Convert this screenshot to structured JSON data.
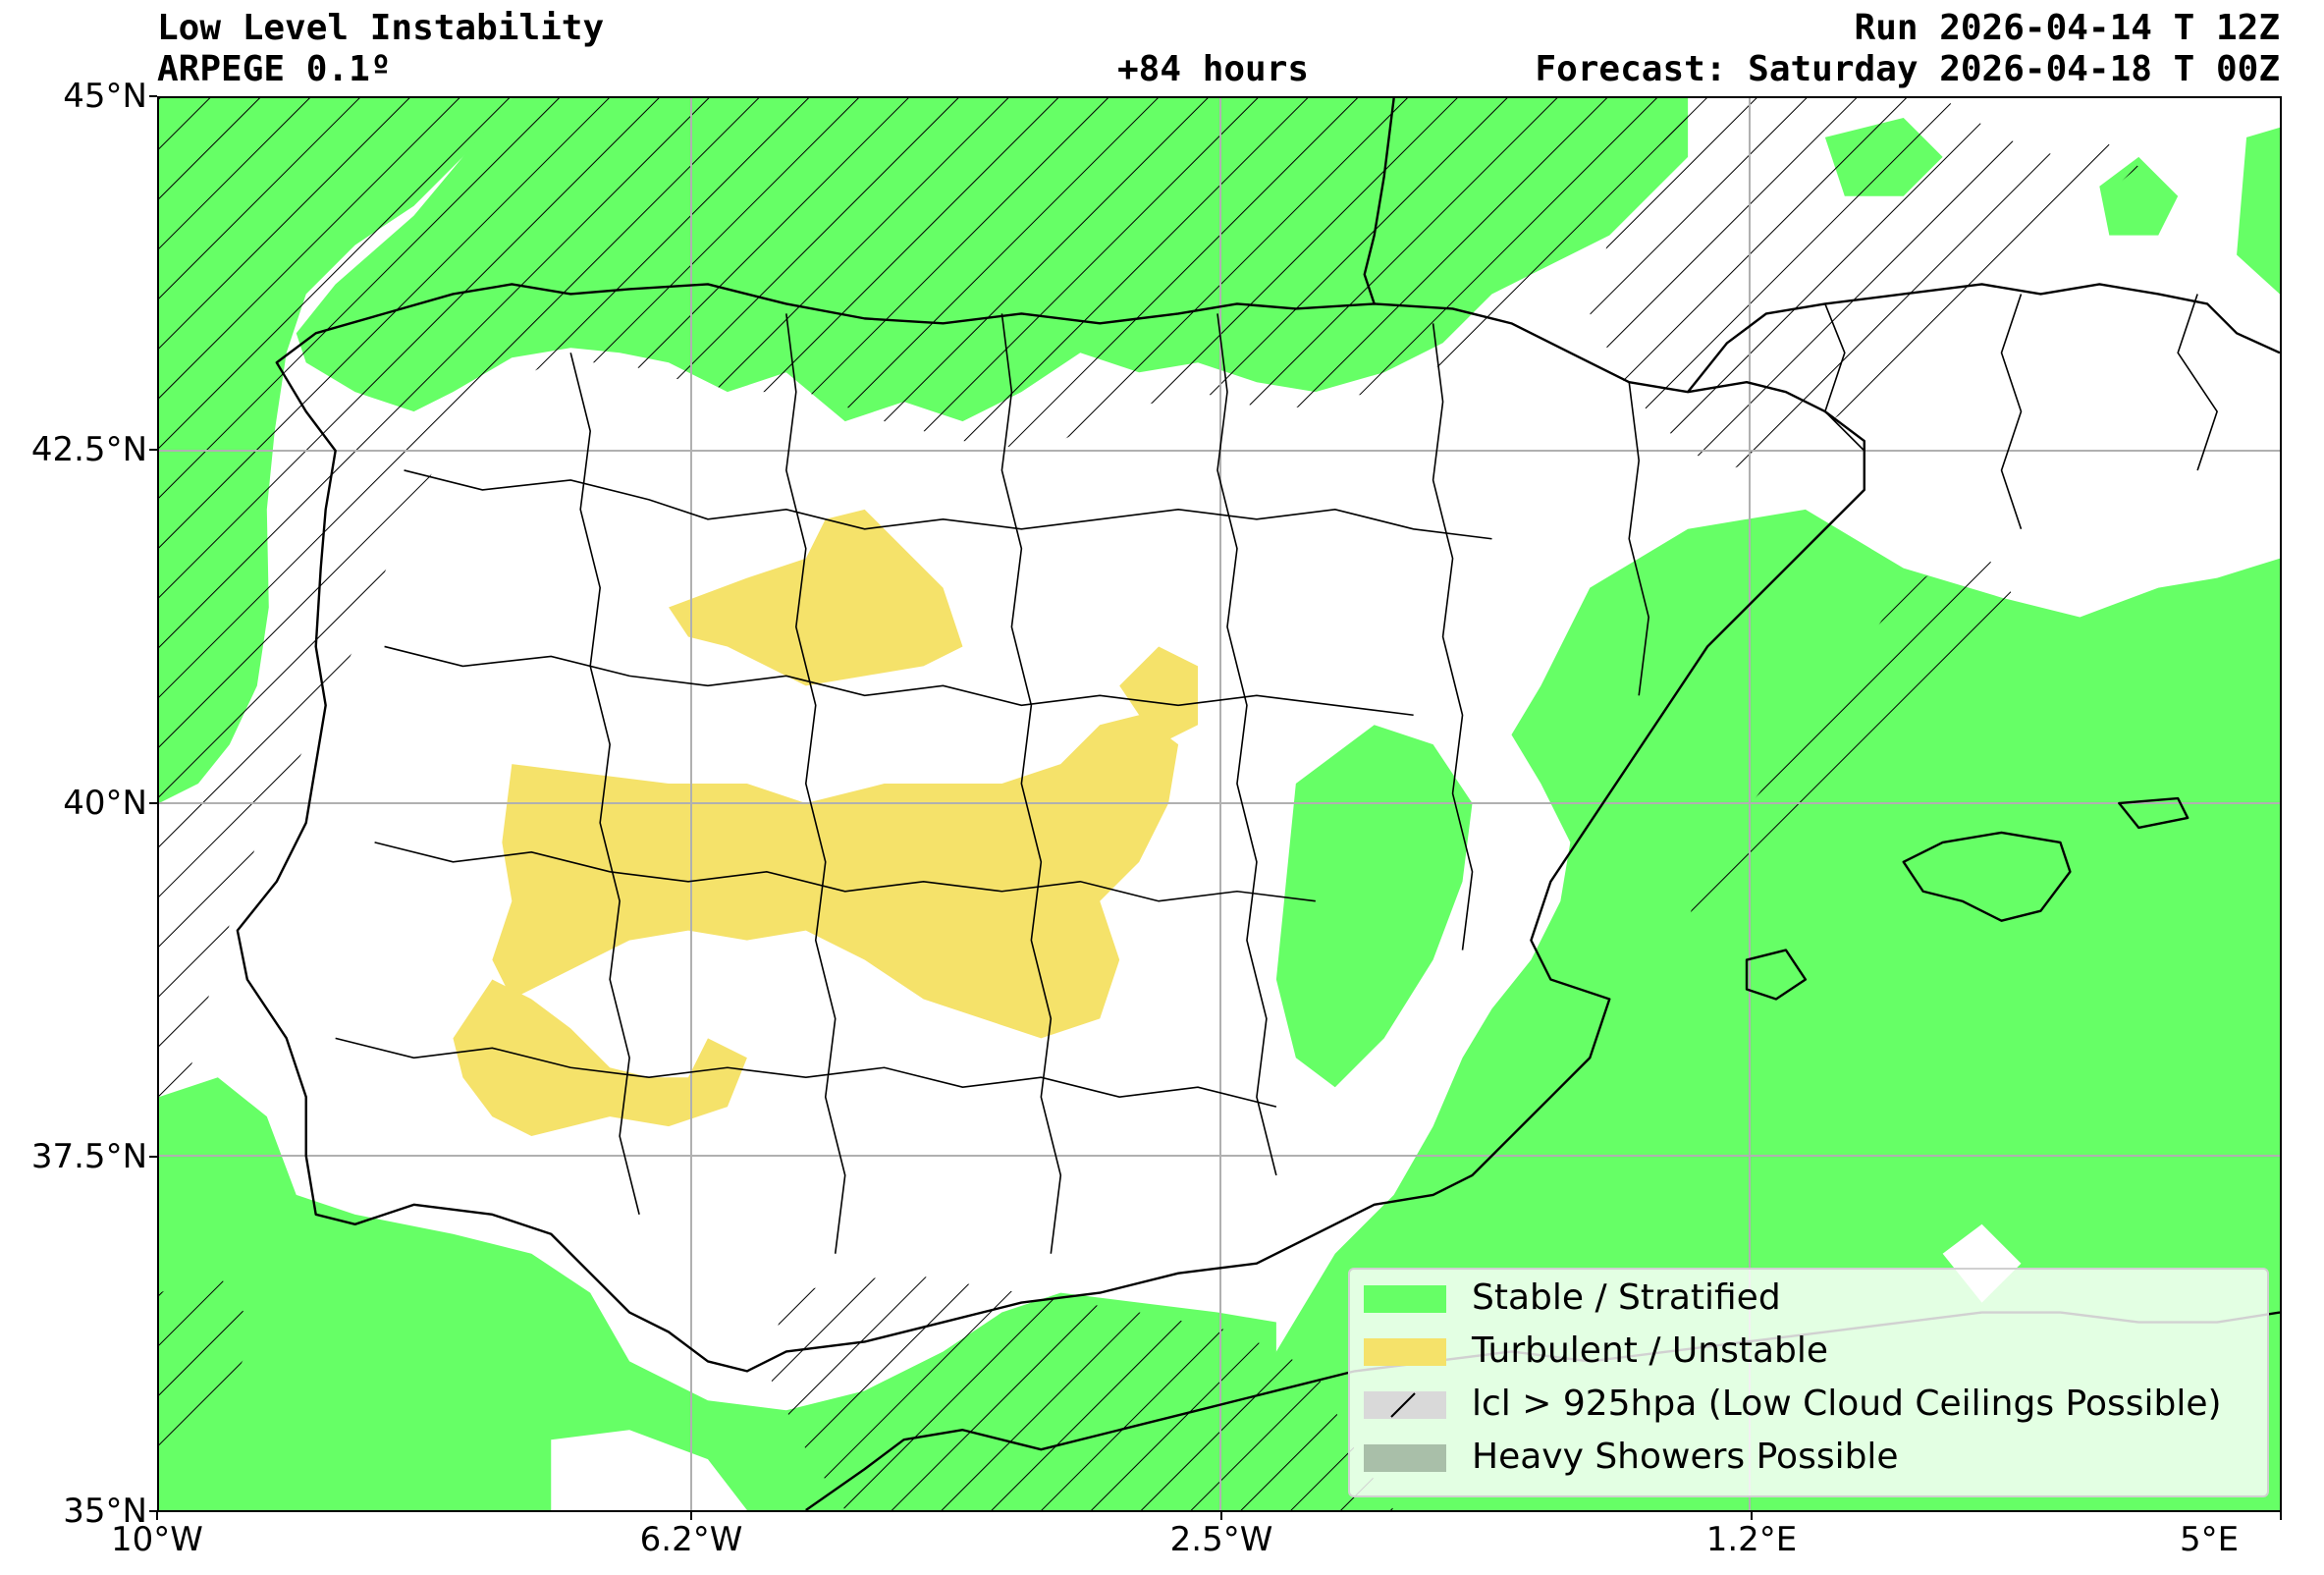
{
  "header": {
    "title": "Low Level Instability",
    "model": "ARPEGE 0.1º",
    "lead_time": "+84 hours",
    "run": "Run 2026-04-14 T 12Z",
    "forecast": "Forecast: Saturday 2026-04-18 T 00Z"
  },
  "axes": {
    "y_ticks": [
      "45°N",
      "42.5°N",
      "40°N",
      "37.5°N",
      "35°N"
    ],
    "x_ticks": [
      "10°W",
      "6.2°W",
      "2.5°W",
      "1.2°E",
      "5°E"
    ],
    "lat_range": [
      35,
      45
    ],
    "lon_range": [
      -10,
      5
    ],
    "grid": true
  },
  "legend": {
    "placement": "bottom-right",
    "items": [
      {
        "label": "Stable / Stratified",
        "color": "#66ff66",
        "pattern": "solid"
      },
      {
        "label": "Turbulent / Unstable",
        "color": "#f5e26a",
        "pattern": "solid"
      },
      {
        "label": "lcl > 925hpa (Low Cloud Ceilings Possible)",
        "color": "#d9d9d9",
        "pattern": "hatch"
      },
      {
        "label": "Heavy Showers Possible",
        "color": "#a9bfa9",
        "pattern": "solid"
      }
    ]
  },
  "colors": {
    "stable": "#66ff66",
    "turbulent": "#f5e26a",
    "coastline": "#000000",
    "grid": "#b0b0b0"
  }
}
